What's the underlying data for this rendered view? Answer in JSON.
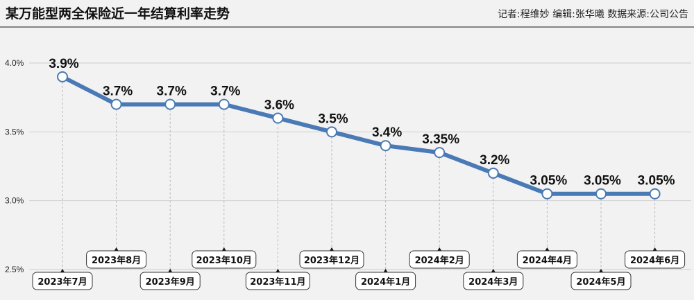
{
  "header": {
    "title": "某万能型两全保险近一年结算利率走势",
    "credits": "记者:程维妙   编辑:张华曦   数据来源:公司公告"
  },
  "chart_data": {
    "type": "line",
    "title": "某万能型两全保险近一年结算利率走势",
    "xlabel": "",
    "ylabel": "",
    "categories": [
      "2023年7月",
      "2023年8月",
      "2023年9月",
      "2023年10月",
      "2023年11月",
      "2023年12月",
      "2024年1月",
      "2024年2月",
      "2024年3月",
      "2024年4月",
      "2024年5月",
      "2024年6月"
    ],
    "values": [
      3.9,
      3.7,
      3.7,
      3.7,
      3.6,
      3.5,
      3.4,
      3.35,
      3.2,
      3.05,
      3.05,
      3.05
    ],
    "data_labels": [
      "3.9%",
      "3.7%",
      "3.7%",
      "3.7%",
      "3.6%",
      "3.5%",
      "3.4%",
      "3.35%",
      "3.2%",
      "3.05%",
      "3.05%",
      "3.05%"
    ],
    "yticks": [
      "2.5%",
      "3.0%",
      "3.5%",
      "4.0%"
    ],
    "ytick_values": [
      2.5,
      3.0,
      3.5,
      4.0
    ],
    "ylim": [
      2.5,
      4.0
    ],
    "grid": true,
    "line_color": "#4a7ab5",
    "marker_fill": "#ffffff"
  }
}
